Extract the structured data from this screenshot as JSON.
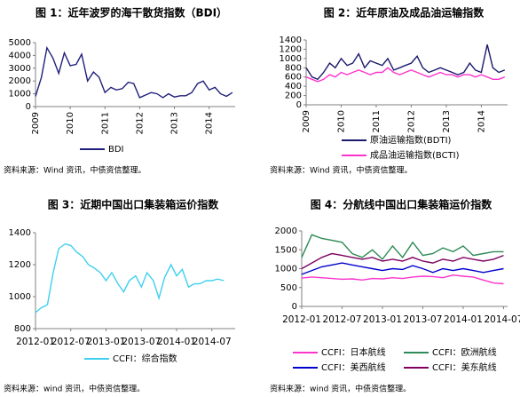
{
  "chart_data": [
    {
      "type": "line",
      "title": "图 1：近年波罗的海干散货指数（BDI）",
      "source": "资料来源：Wind 资讯，中债资信整理。",
      "x": [
        2009,
        2009.17,
        2009.33,
        2009.5,
        2009.67,
        2009.83,
        2010,
        2010.17,
        2010.33,
        2010.5,
        2010.67,
        2010.83,
        2011,
        2011.17,
        2011.33,
        2011.5,
        2011.67,
        2011.83,
        2012,
        2012.17,
        2012.33,
        2012.5,
        2012.67,
        2012.83,
        2013,
        2013.17,
        2013.33,
        2013.5,
        2013.67,
        2013.83,
        2014,
        2014.17,
        2014.33,
        2014.5,
        2014.67
      ],
      "series": [
        {
          "name": "BDI",
          "color": "#1f1f7a",
          "values": [
            800,
            2300,
            4600,
            3800,
            2600,
            4200,
            3200,
            3300,
            4100,
            2000,
            2700,
            2300,
            1100,
            1500,
            1300,
            1400,
            1900,
            1800,
            700,
            900,
            1100,
            1000,
            700,
            1000,
            750,
            850,
            850,
            1100,
            1800,
            2000,
            1300,
            1500,
            1000,
            800,
            1100
          ]
        }
      ],
      "xlim": [
        2009,
        2014.75
      ],
      "xticks": [
        2009,
        2010,
        2011,
        2012,
        2013,
        2014
      ],
      "ylim": [
        0,
        5000
      ],
      "yticks": [
        0,
        1000,
        2000,
        3000,
        4000,
        5000
      ]
    },
    {
      "type": "line",
      "title": "图 2：近年原油及成品油运输指数",
      "source": "资料来源：Wind 资讯，中债资信整理。",
      "x": [
        2009,
        2009.17,
        2009.33,
        2009.5,
        2009.67,
        2009.83,
        2010,
        2010.17,
        2010.33,
        2010.5,
        2010.67,
        2010.83,
        2011,
        2011.17,
        2011.33,
        2011.5,
        2011.67,
        2011.83,
        2012,
        2012.17,
        2012.33,
        2012.5,
        2012.67,
        2012.83,
        2013,
        2013.17,
        2013.33,
        2013.5,
        2013.67,
        2013.83,
        2014,
        2014.17,
        2014.33,
        2014.5,
        2014.67
      ],
      "series": [
        {
          "name": "原油运输指数(BDTI)",
          "color": "#1a1a6e",
          "values": [
            800,
            600,
            550,
            700,
            900,
            800,
            1000,
            850,
            900,
            1100,
            800,
            950,
            900,
            850,
            1000,
            750,
            800,
            850,
            900,
            1050,
            800,
            700,
            750,
            800,
            750,
            700,
            650,
            700,
            900,
            750,
            700,
            1300,
            800,
            700,
            750
          ]
        },
        {
          "name": "成品油运输指数(BCTI)",
          "color": "#ff33cc",
          "values": [
            600,
            550,
            500,
            550,
            650,
            600,
            700,
            650,
            700,
            750,
            700,
            650,
            700,
            700,
            800,
            700,
            650,
            700,
            750,
            700,
            650,
            600,
            650,
            700,
            650,
            650,
            600,
            650,
            650,
            600,
            650,
            600,
            550,
            550,
            600
          ]
        }
      ],
      "xlim": [
        2009,
        2014.75
      ],
      "xticks": [
        2009,
        2010,
        2011,
        2012,
        2013,
        2014
      ],
      "ylim": [
        0,
        1400
      ],
      "yticks": [
        0,
        200,
        400,
        600,
        800,
        1000,
        1200,
        1400
      ]
    },
    {
      "type": "line",
      "title": "图 3：近期中国出口集装箱运价指数",
      "source": "资料来源：wind 资讯，中债资信整理。",
      "x": [
        2012,
        2012.08,
        2012.17,
        2012.25,
        2012.33,
        2012.42,
        2012.5,
        2012.58,
        2012.67,
        2012.75,
        2012.83,
        2012.92,
        2013,
        2013.08,
        2013.17,
        2013.25,
        2013.33,
        2013.42,
        2013.5,
        2013.58,
        2013.67,
        2013.75,
        2013.83,
        2013.92,
        2014,
        2014.08,
        2014.17,
        2014.25,
        2014.33,
        2014.42,
        2014.5,
        2014.58,
        2014.67
      ],
      "series": [
        {
          "name": "CCFI：综合指数",
          "color": "#3fd0f0",
          "values": [
            900,
            930,
            950,
            1150,
            1300,
            1330,
            1320,
            1280,
            1250,
            1200,
            1180,
            1150,
            1100,
            1150,
            1080,
            1030,
            1100,
            1130,
            1060,
            1150,
            1100,
            990,
            1120,
            1200,
            1130,
            1170,
            1060,
            1080,
            1080,
            1100,
            1100,
            1110,
            1100
          ]
        }
      ],
      "xlim": [
        2012,
        2014.83
      ],
      "xticks": [
        {
          "value": 2012,
          "label": "2012-01"
        },
        {
          "value": 2012.5,
          "label": "2012-07"
        },
        {
          "value": 2013,
          "label": "2013-01"
        },
        {
          "value": 2013.5,
          "label": "2013-07"
        },
        {
          "value": 2014,
          "label": "2014-01"
        },
        {
          "value": 2014.5,
          "label": "2014-07"
        }
      ],
      "ylim": [
        800,
        1400
      ],
      "yticks": [
        800,
        1000,
        1200,
        1400
      ]
    },
    {
      "type": "line",
      "title": "图 4：分航线中国出口集装箱运价指数",
      "source": "资料来源：wind 资讯，中债资信整理。",
      "x": [
        2012,
        2012.125,
        2012.25,
        2012.375,
        2012.5,
        2012.625,
        2012.75,
        2012.875,
        2013,
        2013.125,
        2013.25,
        2013.375,
        2013.5,
        2013.625,
        2013.75,
        2013.875,
        2014,
        2014.125,
        2014.25,
        2014.375,
        2014.5
      ],
      "series": [
        {
          "name": "CCFI：日本航线",
          "color": "#ff33cc",
          "values": [
            750,
            780,
            760,
            740,
            720,
            730,
            700,
            740,
            730,
            760,
            740,
            780,
            800,
            790,
            760,
            830,
            800,
            780,
            700,
            620,
            600
          ]
        },
        {
          "name": "CCFI：欧洲航线",
          "color": "#2e8b57",
          "values": [
            1300,
            1900,
            1800,
            1750,
            1700,
            1400,
            1300,
            1500,
            1250,
            1600,
            1300,
            1700,
            1350,
            1400,
            1550,
            1450,
            1600,
            1350,
            1400,
            1450,
            1450
          ]
        },
        {
          "name": "CCFI：美西航线",
          "color": "#0000cc",
          "values": [
            850,
            950,
            1050,
            1100,
            1150,
            1100,
            1050,
            1000,
            950,
            1000,
            980,
            1080,
            1000,
            900,
            1000,
            950,
            1000,
            950,
            900,
            950,
            1000
          ]
        },
        {
          "name": "CCFI：美东航线",
          "color": "#800060",
          "values": [
            1000,
            1150,
            1300,
            1400,
            1350,
            1300,
            1250,
            1300,
            1200,
            1250,
            1200,
            1300,
            1200,
            1150,
            1250,
            1200,
            1300,
            1250,
            1200,
            1250,
            1350
          ]
        }
      ],
      "xlim": [
        2012,
        2014.55
      ],
      "xticks": [
        {
          "value": 2012,
          "label": "2012-01"
        },
        {
          "value": 2012.5,
          "label": "2012-07"
        },
        {
          "value": 2013,
          "label": "2013-01"
        },
        {
          "value": 2013.5,
          "label": "2013-07"
        },
        {
          "value": 2014,
          "label": "2014-01"
        },
        {
          "value": 2014.5,
          "label": "2014-07"
        }
      ],
      "ylim": [
        0,
        2000
      ],
      "yticks": [
        0,
        500,
        1000,
        1500,
        2000
      ]
    }
  ]
}
